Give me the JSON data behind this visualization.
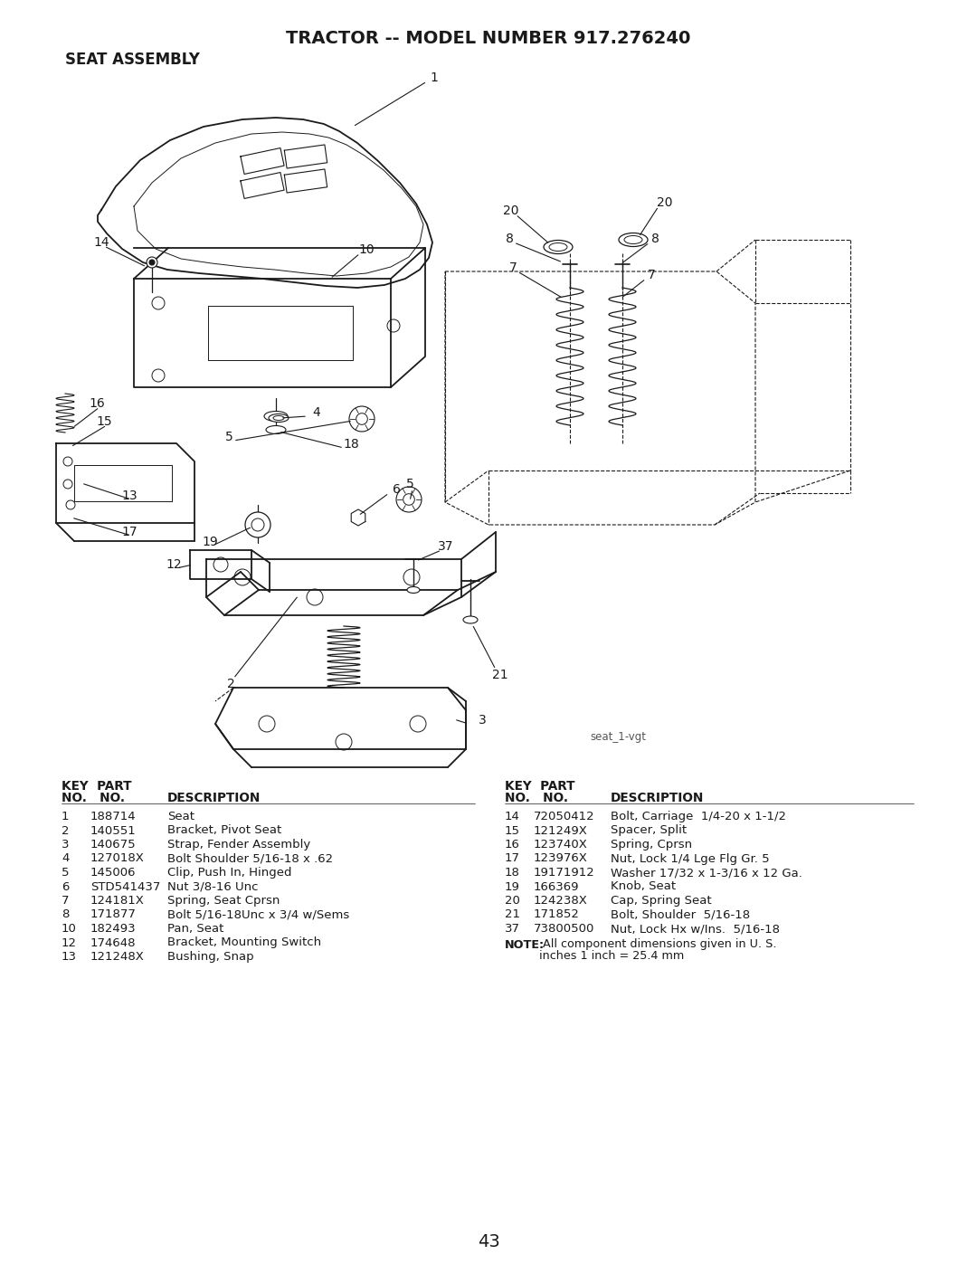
{
  "title": "TRACTOR -- MODEL NUMBER 917.276240",
  "subtitle": "SEAT ASSEMBLY",
  "watermark": "seat_1-vgt",
  "page_number": "43",
  "background_color": "#ffffff",
  "text_color": "#000000",
  "left_parts": [
    [
      "1",
      "188714",
      "Seat"
    ],
    [
      "2",
      "140551",
      "Bracket, Pivot Seat"
    ],
    [
      "3",
      "140675",
      "Strap, Fender Assembly"
    ],
    [
      "4",
      "127018X",
      "Bolt Shoulder 5/16-18 x .62"
    ],
    [
      "5",
      "145006",
      "Clip, Push In, Hinged"
    ],
    [
      "6",
      "STD541437",
      "Nut 3/8-16 Unc"
    ],
    [
      "7",
      "124181X",
      "Spring, Seat Cprsn"
    ],
    [
      "8",
      "171877",
      "Bolt 5/16-18Unc x 3/4 w/Sems"
    ],
    [
      "10",
      "182493",
      "Pan, Seat"
    ],
    [
      "12",
      "174648",
      "Bracket, Mounting Switch"
    ],
    [
      "13",
      "121248X",
      "Bushing, Snap"
    ]
  ],
  "right_parts": [
    [
      "14",
      "72050412",
      "Bolt, Carriage  1/4-20 x 1-1/2"
    ],
    [
      "15",
      "121249X",
      "Spacer, Split"
    ],
    [
      "16",
      "123740X",
      "Spring, Cprsn"
    ],
    [
      "17",
      "123976X",
      "Nut, Lock 1/4 Lge Flg Gr. 5"
    ],
    [
      "18",
      "19171912",
      "Washer 17/32 x 1-3/16 x 12 Ga."
    ],
    [
      "19",
      "166369",
      "Knob, Seat"
    ],
    [
      "20",
      "124238X",
      "Cap, Spring Seat"
    ],
    [
      "21",
      "171852",
      "Bolt, Shoulder  5/16-18"
    ],
    [
      "37",
      "73800500",
      "Nut, Lock Hx w/Ins.  5/16-18"
    ]
  ],
  "note_bold": "NOTE:",
  "note_text": " All component dimensions given in U. S.\n        inches 1 inch = 25.4 mm"
}
